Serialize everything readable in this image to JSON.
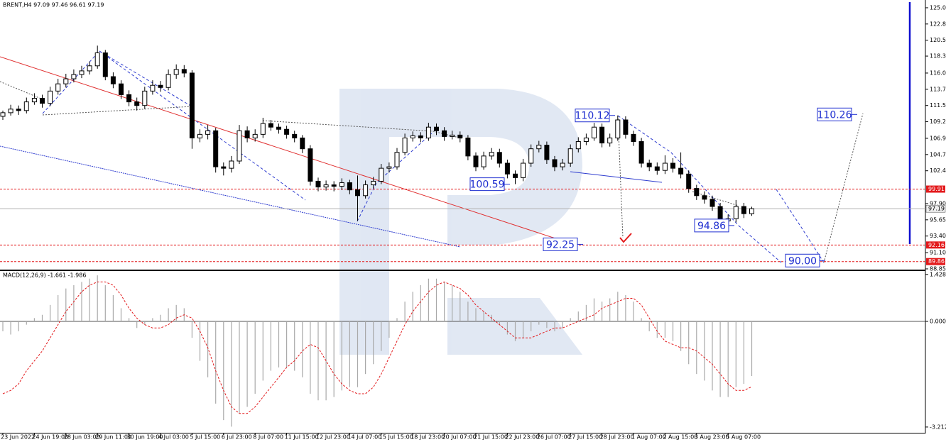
{
  "chart_data": {
    "type": "candlestick",
    "header": "BRENT,H4  97.09 97.46 96.61 97.19",
    "candles": [
      [
        110,
        110.8,
        109.5,
        110.5
      ],
      [
        110.5,
        111.6,
        110.1,
        111
      ],
      [
        111,
        111.5,
        110.2,
        110.8
      ],
      [
        110.8,
        112.6,
        110.4,
        112
      ],
      [
        112,
        113.2,
        111.6,
        112.5
      ],
      [
        112.5,
        113,
        111.2,
        111.8
      ],
      [
        111.8,
        114.1,
        111.4,
        113.5
      ],
      [
        113.5,
        115.2,
        113,
        114.5
      ],
      [
        114.5,
        115.9,
        114,
        115.2
      ],
      [
        115.2,
        116.5,
        114.7,
        115.8
      ],
      [
        115.8,
        117,
        115.3,
        116.3
      ],
      [
        116.3,
        117.6,
        115.8,
        117
      ],
      [
        117,
        119.8,
        116.6,
        118.8
      ],
      [
        118.8,
        119.2,
        115,
        115.5
      ],
      [
        115.5,
        116.1,
        113.9,
        114.5
      ],
      [
        114.5,
        115,
        112.4,
        113
      ],
      [
        113,
        113.6,
        111.4,
        112
      ],
      [
        112,
        112.6,
        110.8,
        111.5
      ],
      [
        111.5,
        114.1,
        111,
        113.5
      ],
      [
        113.5,
        115,
        113,
        114.3
      ],
      [
        114.3,
        114.9,
        113.4,
        114
      ],
      [
        114,
        116.5,
        113.6,
        115.8
      ],
      [
        115.8,
        117.2,
        115.2,
        116.5
      ],
      [
        116.5,
        117.1,
        115.4,
        116
      ],
      [
        116,
        116.4,
        105.5,
        107
      ],
      [
        107,
        108.2,
        106.4,
        107.5
      ],
      [
        107.5,
        108.8,
        106.8,
        108
      ],
      [
        108,
        108.4,
        102.2,
        103
      ],
      [
        103,
        103.6,
        101.8,
        102.8
      ],
      [
        102.8,
        104.5,
        102.2,
        103.8
      ],
      [
        103.8,
        108.8,
        103.4,
        108
      ],
      [
        108,
        108.6,
        106.4,
        107
      ],
      [
        107,
        108.2,
        106.5,
        107.5
      ],
      [
        107.5,
        109.8,
        107,
        109
      ],
      [
        109,
        109.5,
        108,
        108.5
      ],
      [
        108.5,
        109,
        107.6,
        108.2
      ],
      [
        108.2,
        108.7,
        106.9,
        107.5
      ],
      [
        107.5,
        108,
        106.4,
        107
      ],
      [
        107,
        107.4,
        104.9,
        105.5
      ],
      [
        105.5,
        106,
        100.4,
        101
      ],
      [
        101,
        101.5,
        99.6,
        100.2
      ],
      [
        100.2,
        101.1,
        99.7,
        100.5
      ],
      [
        100.5,
        101,
        99.6,
        100.3
      ],
      [
        100.3,
        101.4,
        99.8,
        100.8
      ],
      [
        100.8,
        101.2,
        99.2,
        99.8
      ],
      [
        99.8,
        101.8,
        95.5,
        99
      ],
      [
        99,
        101.1,
        98.6,
        100.5
      ],
      [
        100.5,
        101.6,
        100,
        101
      ],
      [
        101,
        103.4,
        100.6,
        102.8
      ],
      [
        102.8,
        103.6,
        102.2,
        103
      ],
      [
        103,
        105.6,
        102.6,
        105
      ],
      [
        105,
        107.6,
        104.6,
        107
      ],
      [
        107,
        107.9,
        106.5,
        107.3
      ],
      [
        107.3,
        107.8,
        106.4,
        107
      ],
      [
        107,
        109.1,
        106.6,
        108.5
      ],
      [
        108.5,
        109,
        107.4,
        108
      ],
      [
        108,
        108.5,
        106.6,
        107.2
      ],
      [
        107.2,
        108,
        106.8,
        107.4
      ],
      [
        107.4,
        107.9,
        106.4,
        107
      ],
      [
        107,
        107.4,
        103.9,
        104.5
      ],
      [
        104.5,
        105,
        102.4,
        103
      ],
      [
        103,
        105.1,
        102.6,
        104.5
      ],
      [
        104.5,
        105.6,
        104,
        105
      ],
      [
        105,
        105.5,
        102.9,
        103.5
      ],
      [
        103.5,
        104,
        101.4,
        102
      ],
      [
        102,
        102.5,
        100.6,
        101.5
      ],
      [
        101.5,
        104.1,
        101,
        103.5
      ],
      [
        103.5,
        106.1,
        103,
        105.5
      ],
      [
        105.5,
        106.6,
        105,
        106
      ],
      [
        106,
        106.5,
        103.4,
        104
      ],
      [
        104,
        104.5,
        102.4,
        103
      ],
      [
        103,
        104.1,
        102.5,
        103.5
      ],
      [
        103.5,
        106.1,
        103,
        105.5
      ],
      [
        105.5,
        107.1,
        105,
        106.5
      ],
      [
        106.5,
        107.6,
        106,
        107
      ],
      [
        107,
        109.1,
        106.6,
        108.5
      ],
      [
        108.5,
        109,
        105.7,
        106.3
      ],
      [
        106.3,
        107.6,
        105.8,
        107
      ],
      [
        107,
        110.12,
        106.6,
        109.5
      ],
      [
        109.5,
        110,
        106.9,
        107.5
      ],
      [
        107.5,
        108,
        105.9,
        106.5
      ],
      [
        106.5,
        107,
        102.9,
        103.5
      ],
      [
        103.5,
        104,
        102.4,
        103
      ],
      [
        103,
        103.6,
        101.9,
        102.5
      ],
      [
        102.5,
        104.6,
        102,
        103.5
      ],
      [
        103.5,
        104.2,
        102.2,
        102.8
      ],
      [
        102.8,
        105,
        101.4,
        102
      ],
      [
        102,
        102.5,
        99.4,
        100
      ],
      [
        100,
        100.5,
        98.4,
        99
      ],
      [
        99,
        99.6,
        97.9,
        98.5
      ],
      [
        98.5,
        99,
        96.9,
        97.5
      ],
      [
        97.5,
        98,
        94.86,
        95.5
      ],
      [
        95.5,
        96.4,
        95.1,
        95.8
      ],
      [
        95.8,
        98.4,
        95.3,
        97.5
      ],
      [
        97.5,
        98,
        95.9,
        96.5
      ],
      [
        96.5,
        97.46,
        96.2,
        97.19
      ]
    ],
    "x_tick_labels": [
      "23 Jun 2022",
      "24 Jun 19:00",
      "28 Jun 03:00",
      "29 Jun 11:00",
      "30 Jun 19:00",
      "4 Jul 03:00",
      "5 Jul 15:00",
      "6 Jul 23:00",
      "8 Jul 07:00",
      "11 Jul 15:00",
      "12 Jul 23:00",
      "14 Jul 07:00",
      "15 Jul 15:00",
      "18 Jul 23:00",
      "20 Jul 07:00",
      "21 Jul 15:00",
      "22 Jul 23:00",
      "26 Jul 07:00",
      "27 Jul 15:00",
      "28 Jul 23:00",
      "1 Aug 07:00",
      "2 Aug 15:00",
      "3 Aug 23:00",
      "5 Aug 07:00"
    ],
    "ylim": [
      88.65,
      125.93
    ],
    "yticks": [
      125.05,
      {
        "value": 122.8,
        "label": "122.80"
      },
      120.55,
      118.35,
      {
        "value": 116,
        "label": "116.00"
      },
      113.75,
      {
        "value": 111.5,
        "label": "111.50"
      },
      109.25,
      106.95,
      {
        "value": 104.7,
        "label": "104.70"
      },
      102.45,
      {
        "value": 97.9,
        "label": "97.90"
      },
      95.65,
      {
        "value": 93.4,
        "label": "93.40"
      },
      {
        "value": 91.1,
        "label": "91.10"
      },
      88.85
    ],
    "levels": [
      {
        "value": 99.91,
        "color": "#e31a1c"
      },
      {
        "value": 92.16,
        "color": "#e31a1c"
      },
      {
        "value": 89.86,
        "color": "#e31a1c"
      }
    ],
    "last_price": 97.19,
    "annotations": [
      110.12,
      100.59,
      92.25,
      94.86,
      {
        "value": 90,
        "label": "90.00"
      },
      110.26
    ],
    "macd": {
      "title": "MACD(12,26,9) -1.661 -1.986",
      "ylim": [
        -3.43,
        1.51
      ],
      "yticks": [
        1.428,
        {
          "value": 0,
          "label": "0.000"
        },
        -3.212
      ],
      "histogram": [
        -0.3,
        -0.4,
        -0.3,
        -0.1,
        0.1,
        0.2,
        0.5,
        0.8,
        1.0,
        1.1,
        1.2,
        1.3,
        1.4,
        1.1,
        0.8,
        0.4,
        0.1,
        -0.2,
        -0.1,
        0.1,
        0.2,
        0.4,
        0.5,
        0.4,
        -0.5,
        -1.2,
        -1.7,
        -2.5,
        -3.0,
        -3.2,
        -2.8,
        -2.6,
        -2.2,
        -1.8,
        -1.5,
        -1.4,
        -1.4,
        -1.5,
        -1.7,
        -2.2,
        -2.4,
        -2.4,
        -2.3,
        -2.1,
        -2.0,
        -2.0,
        -1.6,
        -1.3,
        -0.9,
        -0.5,
        0.1,
        0.6,
        0.9,
        1.1,
        1.3,
        1.3,
        1.2,
        1.1,
        0.9,
        0.6,
        0.4,
        0.3,
        0.2,
        -0.1,
        -0.4,
        -0.6,
        -0.5,
        -0.3,
        -0.1,
        -0.2,
        -0.3,
        -0.2,
        0.1,
        0.3,
        0.5,
        0.7,
        0.6,
        0.7,
        0.9,
        0.8,
        0.6,
        0.1,
        -0.3,
        -0.5,
        -0.5,
        -0.6,
        -0.9,
        -1.3,
        -1.6,
        -1.8,
        -2.1,
        -2.3,
        -2.3,
        -2.0,
        -1.9,
        -1.661
      ],
      "signal": [
        -2.2,
        -2.1,
        -1.9,
        -1.5,
        -1.2,
        -0.9,
        -0.5,
        -0.1,
        0.3,
        0.6,
        0.9,
        1.1,
        1.2,
        1.2,
        1.1,
        0.8,
        0.4,
        0.1,
        -0.1,
        -0.2,
        -0.2,
        -0.1,
        0.1,
        0.2,
        0.1,
        -0.3,
        -0.8,
        -1.5,
        -2.1,
        -2.6,
        -2.8,
        -2.8,
        -2.6,
        -2.3,
        -2.0,
        -1.7,
        -1.4,
        -1.2,
        -0.9,
        -0.7,
        -0.8,
        -1.2,
        -1.6,
        -1.9,
        -2.1,
        -2.2,
        -2.2,
        -2.0,
        -1.6,
        -1.1,
        -0.6,
        -0.1,
        0.3,
        0.6,
        0.9,
        1.1,
        1.2,
        1.1,
        1.0,
        0.8,
        0.5,
        0.3,
        0.1,
        -0.1,
        -0.3,
        -0.5,
        -0.5,
        -0.5,
        -0.4,
        -0.3,
        -0.2,
        -0.2,
        -0.1,
        0.0,
        0.1,
        0.2,
        0.4,
        0.5,
        0.6,
        0.7,
        0.7,
        0.5,
        0.1,
        -0.3,
        -0.6,
        -0.7,
        -0.8,
        -0.8,
        -0.9,
        -1.1,
        -1.3,
        -1.6,
        -1.9,
        -2.1,
        -2.1,
        -1.986
      ],
      "histogram_color": "#a9a9a9",
      "signal_color": "#e31a1c"
    }
  }
}
